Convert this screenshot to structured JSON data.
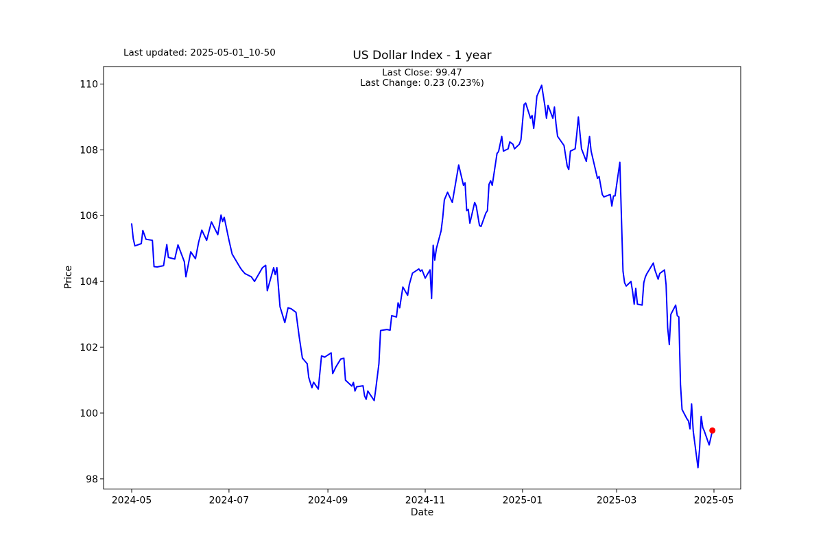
{
  "header": {
    "last_updated": "Last updated: 2025-05-01_10-50",
    "title": "US Dollar Index - 1 year",
    "last_close_line": "Last Close: 99.47",
    "last_change_line": "Last Change: 0.23 (0.23%)"
  },
  "chart_data": {
    "type": "line",
    "title": "US Dollar Index - 1 year",
    "xlabel": "Date",
    "ylabel": "Price",
    "grid": false,
    "legend_position": "none",
    "line_color": "#0000ff",
    "line_width": 2,
    "marker_color": "#ff0000",
    "marker_radius": 4.5,
    "last_close": 99.47,
    "last_change": 0.23,
    "last_change_pct": "0.23%",
    "ylim": [
      97.69,
      110.53
    ],
    "yticks": [
      98,
      100,
      102,
      104,
      106,
      108,
      110
    ],
    "xtick_labels": [
      "2024-05",
      "2024-07",
      "2024-09",
      "2024-11",
      "2025-01",
      "2025-03",
      "2025-05"
    ],
    "xtick_dates": [
      "2024-05-01",
      "2024-07-01",
      "2024-09-01",
      "2024-11-01",
      "2025-01-01",
      "2025-03-01",
      "2025-05-01"
    ],
    "x_calibration": [
      "2024-05-01",
      "2025-05-01"
    ],
    "series": [
      {
        "name": "US Dollar Index",
        "points": [
          [
            "2024-05-01",
            105.75
          ],
          [
            "2024-05-02",
            105.3
          ],
          [
            "2024-05-03",
            105.08
          ],
          [
            "2024-05-07",
            105.15
          ],
          [
            "2024-05-08",
            105.55
          ],
          [
            "2024-05-10",
            105.28
          ],
          [
            "2024-05-14",
            105.25
          ],
          [
            "2024-05-15",
            104.45
          ],
          [
            "2024-05-17",
            104.44
          ],
          [
            "2024-05-21",
            104.48
          ],
          [
            "2024-05-23",
            105.12
          ],
          [
            "2024-05-24",
            104.73
          ],
          [
            "2024-05-28",
            104.68
          ],
          [
            "2024-05-30",
            105.11
          ],
          [
            "2024-06-03",
            104.6
          ],
          [
            "2024-06-04",
            104.14
          ],
          [
            "2024-06-07",
            104.9
          ],
          [
            "2024-06-10",
            104.69
          ],
          [
            "2024-06-12",
            105.2
          ],
          [
            "2024-06-14",
            105.56
          ],
          [
            "2024-06-17",
            105.25
          ],
          [
            "2024-06-20",
            105.81
          ],
          [
            "2024-06-24",
            105.42
          ],
          [
            "2024-06-26",
            106.02
          ],
          [
            "2024-06-27",
            105.82
          ],
          [
            "2024-06-28",
            105.95
          ],
          [
            "2024-07-01",
            105.25
          ],
          [
            "2024-07-03",
            104.83
          ],
          [
            "2024-07-08",
            104.42
          ],
          [
            "2024-07-09",
            104.35
          ],
          [
            "2024-07-11",
            104.24
          ],
          [
            "2024-07-15",
            104.14
          ],
          [
            "2024-07-17",
            104.0
          ],
          [
            "2024-07-22",
            104.42
          ],
          [
            "2024-07-24",
            104.49
          ],
          [
            "2024-07-25",
            103.72
          ],
          [
            "2024-07-29",
            104.42
          ],
          [
            "2024-07-30",
            104.21
          ],
          [
            "2024-07-31",
            104.42
          ],
          [
            "2024-08-02",
            103.23
          ],
          [
            "2024-08-05",
            102.75
          ],
          [
            "2024-08-07",
            103.2
          ],
          [
            "2024-08-09",
            103.17
          ],
          [
            "2024-08-12",
            103.06
          ],
          [
            "2024-08-14",
            102.33
          ],
          [
            "2024-08-16",
            101.67
          ],
          [
            "2024-08-19",
            101.5
          ],
          [
            "2024-08-20",
            101.08
          ],
          [
            "2024-08-22",
            100.77
          ],
          [
            "2024-08-23",
            100.94
          ],
          [
            "2024-08-26",
            100.73
          ],
          [
            "2024-08-28",
            101.74
          ],
          [
            "2024-08-30",
            101.7
          ],
          [
            "2024-09-03",
            101.83
          ],
          [
            "2024-09-04",
            101.2
          ],
          [
            "2024-09-06",
            101.4
          ],
          [
            "2024-09-09",
            101.64
          ],
          [
            "2024-09-11",
            101.67
          ],
          [
            "2024-09-12",
            101.0
          ],
          [
            "2024-09-16",
            100.82
          ],
          [
            "2024-09-17",
            100.93
          ],
          [
            "2024-09-18",
            100.67
          ],
          [
            "2024-09-19",
            100.8
          ],
          [
            "2024-09-23",
            100.83
          ],
          [
            "2024-09-24",
            100.52
          ],
          [
            "2024-09-25",
            100.42
          ],
          [
            "2024-09-26",
            100.67
          ],
          [
            "2024-09-30",
            100.38
          ],
          [
            "2024-10-01",
            100.73
          ],
          [
            "2024-10-03",
            101.5
          ],
          [
            "2024-10-04",
            102.51
          ],
          [
            "2024-10-08",
            102.54
          ],
          [
            "2024-10-10",
            102.52
          ],
          [
            "2024-10-11",
            102.96
          ],
          [
            "2024-10-14",
            102.92
          ],
          [
            "2024-10-15",
            103.35
          ],
          [
            "2024-10-16",
            103.2
          ],
          [
            "2024-10-18",
            103.83
          ],
          [
            "2024-10-21",
            103.58
          ],
          [
            "2024-10-22",
            103.9
          ],
          [
            "2024-10-24",
            104.25
          ],
          [
            "2024-10-28",
            104.38
          ],
          [
            "2024-10-29",
            104.31
          ],
          [
            "2024-10-30",
            104.35
          ],
          [
            "2024-11-01",
            104.1
          ],
          [
            "2024-11-04",
            104.35
          ],
          [
            "2024-11-05",
            103.48
          ],
          [
            "2024-11-06",
            105.1
          ],
          [
            "2024-11-07",
            104.65
          ],
          [
            "2024-11-08",
            105.0
          ],
          [
            "2024-11-11",
            105.54
          ],
          [
            "2024-11-12",
            105.95
          ],
          [
            "2024-11-13",
            106.48
          ],
          [
            "2024-11-15",
            106.71
          ],
          [
            "2024-11-18",
            106.4
          ],
          [
            "2024-11-22",
            107.54
          ],
          [
            "2024-11-25",
            106.92
          ],
          [
            "2024-11-26",
            107.0
          ],
          [
            "2024-11-27",
            106.15
          ],
          [
            "2024-11-28",
            106.19
          ],
          [
            "2024-11-29",
            105.77
          ],
          [
            "2024-12-02",
            106.4
          ],
          [
            "2024-12-03",
            106.29
          ],
          [
            "2024-12-05",
            105.7
          ],
          [
            "2024-12-06",
            105.67
          ],
          [
            "2024-12-09",
            106.08
          ],
          [
            "2024-12-10",
            106.15
          ],
          [
            "2024-12-11",
            106.95
          ],
          [
            "2024-12-12",
            107.06
          ],
          [
            "2024-12-13",
            106.92
          ],
          [
            "2024-12-16",
            107.89
          ],
          [
            "2024-12-17",
            107.95
          ],
          [
            "2024-12-19",
            108.41
          ],
          [
            "2024-12-20",
            107.96
          ],
          [
            "2024-12-23",
            108.03
          ],
          [
            "2024-12-24",
            108.24
          ],
          [
            "2024-12-26",
            108.17
          ],
          [
            "2024-12-27",
            108.03
          ],
          [
            "2024-12-30",
            108.17
          ],
          [
            "2024-12-31",
            108.31
          ],
          [
            "2025-01-02",
            109.38
          ],
          [
            "2025-01-03",
            109.42
          ],
          [
            "2025-01-06",
            108.96
          ],
          [
            "2025-01-07",
            109.04
          ],
          [
            "2025-01-08",
            108.65
          ],
          [
            "2025-01-09",
            109.1
          ],
          [
            "2025-01-10",
            109.63
          ],
          [
            "2025-01-13",
            109.96
          ],
          [
            "2025-01-15",
            109.35
          ],
          [
            "2025-01-16",
            108.96
          ],
          [
            "2025-01-17",
            109.35
          ],
          [
            "2025-01-20",
            108.96
          ],
          [
            "2025-01-21",
            109.3
          ],
          [
            "2025-01-22",
            108.79
          ],
          [
            "2025-01-23",
            108.41
          ],
          [
            "2025-01-27",
            108.13
          ],
          [
            "2025-01-29",
            107.51
          ],
          [
            "2025-01-30",
            107.4
          ],
          [
            "2025-01-31",
            107.96
          ],
          [
            "2025-02-03",
            108.03
          ],
          [
            "2025-02-04",
            108.48
          ],
          [
            "2025-02-05",
            109.0
          ],
          [
            "2025-02-06",
            108.51
          ],
          [
            "2025-02-07",
            108.03
          ],
          [
            "2025-02-10",
            107.65
          ],
          [
            "2025-02-11",
            108.03
          ],
          [
            "2025-02-12",
            108.41
          ],
          [
            "2025-02-13",
            107.96
          ],
          [
            "2025-02-17",
            107.13
          ],
          [
            "2025-02-18",
            107.19
          ],
          [
            "2025-02-20",
            106.64
          ],
          [
            "2025-02-21",
            106.57
          ],
          [
            "2025-02-25",
            106.64
          ],
          [
            "2025-02-26",
            106.29
          ],
          [
            "2025-02-27",
            106.6
          ],
          [
            "2025-02-28",
            106.6
          ],
          [
            "2025-03-03",
            107.62
          ],
          [
            "2025-03-04",
            105.94
          ],
          [
            "2025-03-05",
            104.31
          ],
          [
            "2025-03-06",
            103.96
          ],
          [
            "2025-03-07",
            103.86
          ],
          [
            "2025-03-10",
            104.0
          ],
          [
            "2025-03-11",
            103.69
          ],
          [
            "2025-03-12",
            103.31
          ],
          [
            "2025-03-13",
            103.79
          ],
          [
            "2025-03-14",
            103.31
          ],
          [
            "2025-03-17",
            103.28
          ],
          [
            "2025-03-18",
            103.96
          ],
          [
            "2025-03-19",
            104.14
          ],
          [
            "2025-03-20",
            104.24
          ],
          [
            "2025-03-24",
            104.56
          ],
          [
            "2025-03-25",
            104.35
          ],
          [
            "2025-03-27",
            104.07
          ],
          [
            "2025-03-28",
            104.24
          ],
          [
            "2025-03-31",
            104.35
          ],
          [
            "2025-04-01",
            103.9
          ],
          [
            "2025-04-02",
            102.6
          ],
          [
            "2025-04-03",
            102.08
          ],
          [
            "2025-04-04",
            103.0
          ],
          [
            "2025-04-07",
            103.28
          ],
          [
            "2025-04-08",
            102.96
          ],
          [
            "2025-04-09",
            102.92
          ],
          [
            "2025-04-10",
            100.87
          ],
          [
            "2025-04-11",
            100.11
          ],
          [
            "2025-04-14",
            99.83
          ],
          [
            "2025-04-15",
            99.76
          ],
          [
            "2025-04-16",
            99.52
          ],
          [
            "2025-04-17",
            100.28
          ],
          [
            "2025-04-18",
            99.45
          ],
          [
            "2025-04-21",
            98.34
          ],
          [
            "2025-04-22",
            98.93
          ],
          [
            "2025-04-23",
            99.9
          ],
          [
            "2025-04-24",
            99.56
          ],
          [
            "2025-04-25",
            99.45
          ],
          [
            "2025-04-28",
            99.03
          ],
          [
            "2025-04-29",
            99.24
          ],
          [
            "2025-04-30",
            99.47
          ]
        ]
      }
    ]
  }
}
